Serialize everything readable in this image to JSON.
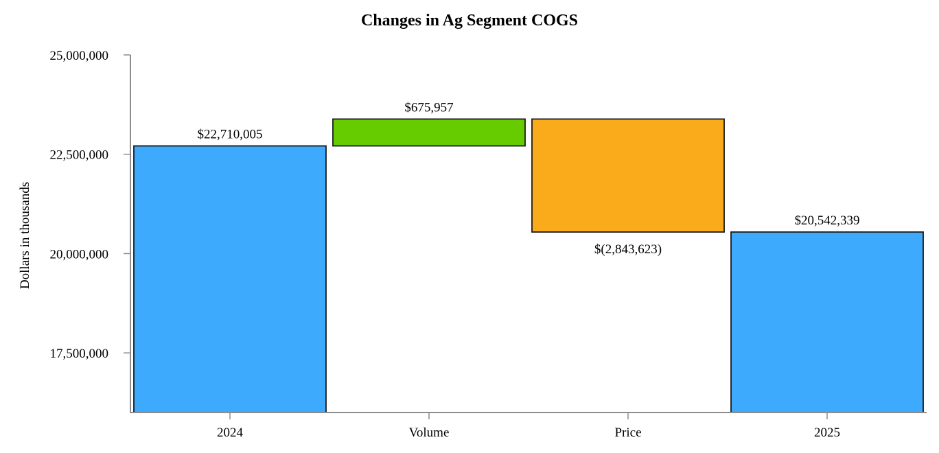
{
  "chart_data": {
    "type": "waterfall",
    "title": "Changes in Ag Segment COGS",
    "ylabel": "Dollars in thousands",
    "xlabel": "",
    "ylim": [
      16000000,
      25000000
    ],
    "yticks": [
      17500000,
      20000000,
      22500000,
      25000000
    ],
    "ytick_labels": [
      "17,500,000",
      "20,000,000",
      "22,500,000",
      "25,000,000"
    ],
    "grid": false,
    "categories": [
      "2024",
      "Volume",
      "Price",
      "2025"
    ],
    "bars": [
      {
        "category": "2024",
        "kind": "total",
        "value": 22710005,
        "label": "$22,710,005",
        "color": "#3daafd"
      },
      {
        "category": "Volume",
        "kind": "increase",
        "value": 675957,
        "label": "$675,957",
        "color": "#66cc00"
      },
      {
        "category": "Price",
        "kind": "decrease",
        "value": -2843623,
        "label": "$(2,843,623)",
        "color": "#f9ab1c"
      },
      {
        "category": "2025",
        "kind": "total",
        "value": 20542339,
        "label": "$20,542,339",
        "color": "#3daafd"
      }
    ]
  }
}
